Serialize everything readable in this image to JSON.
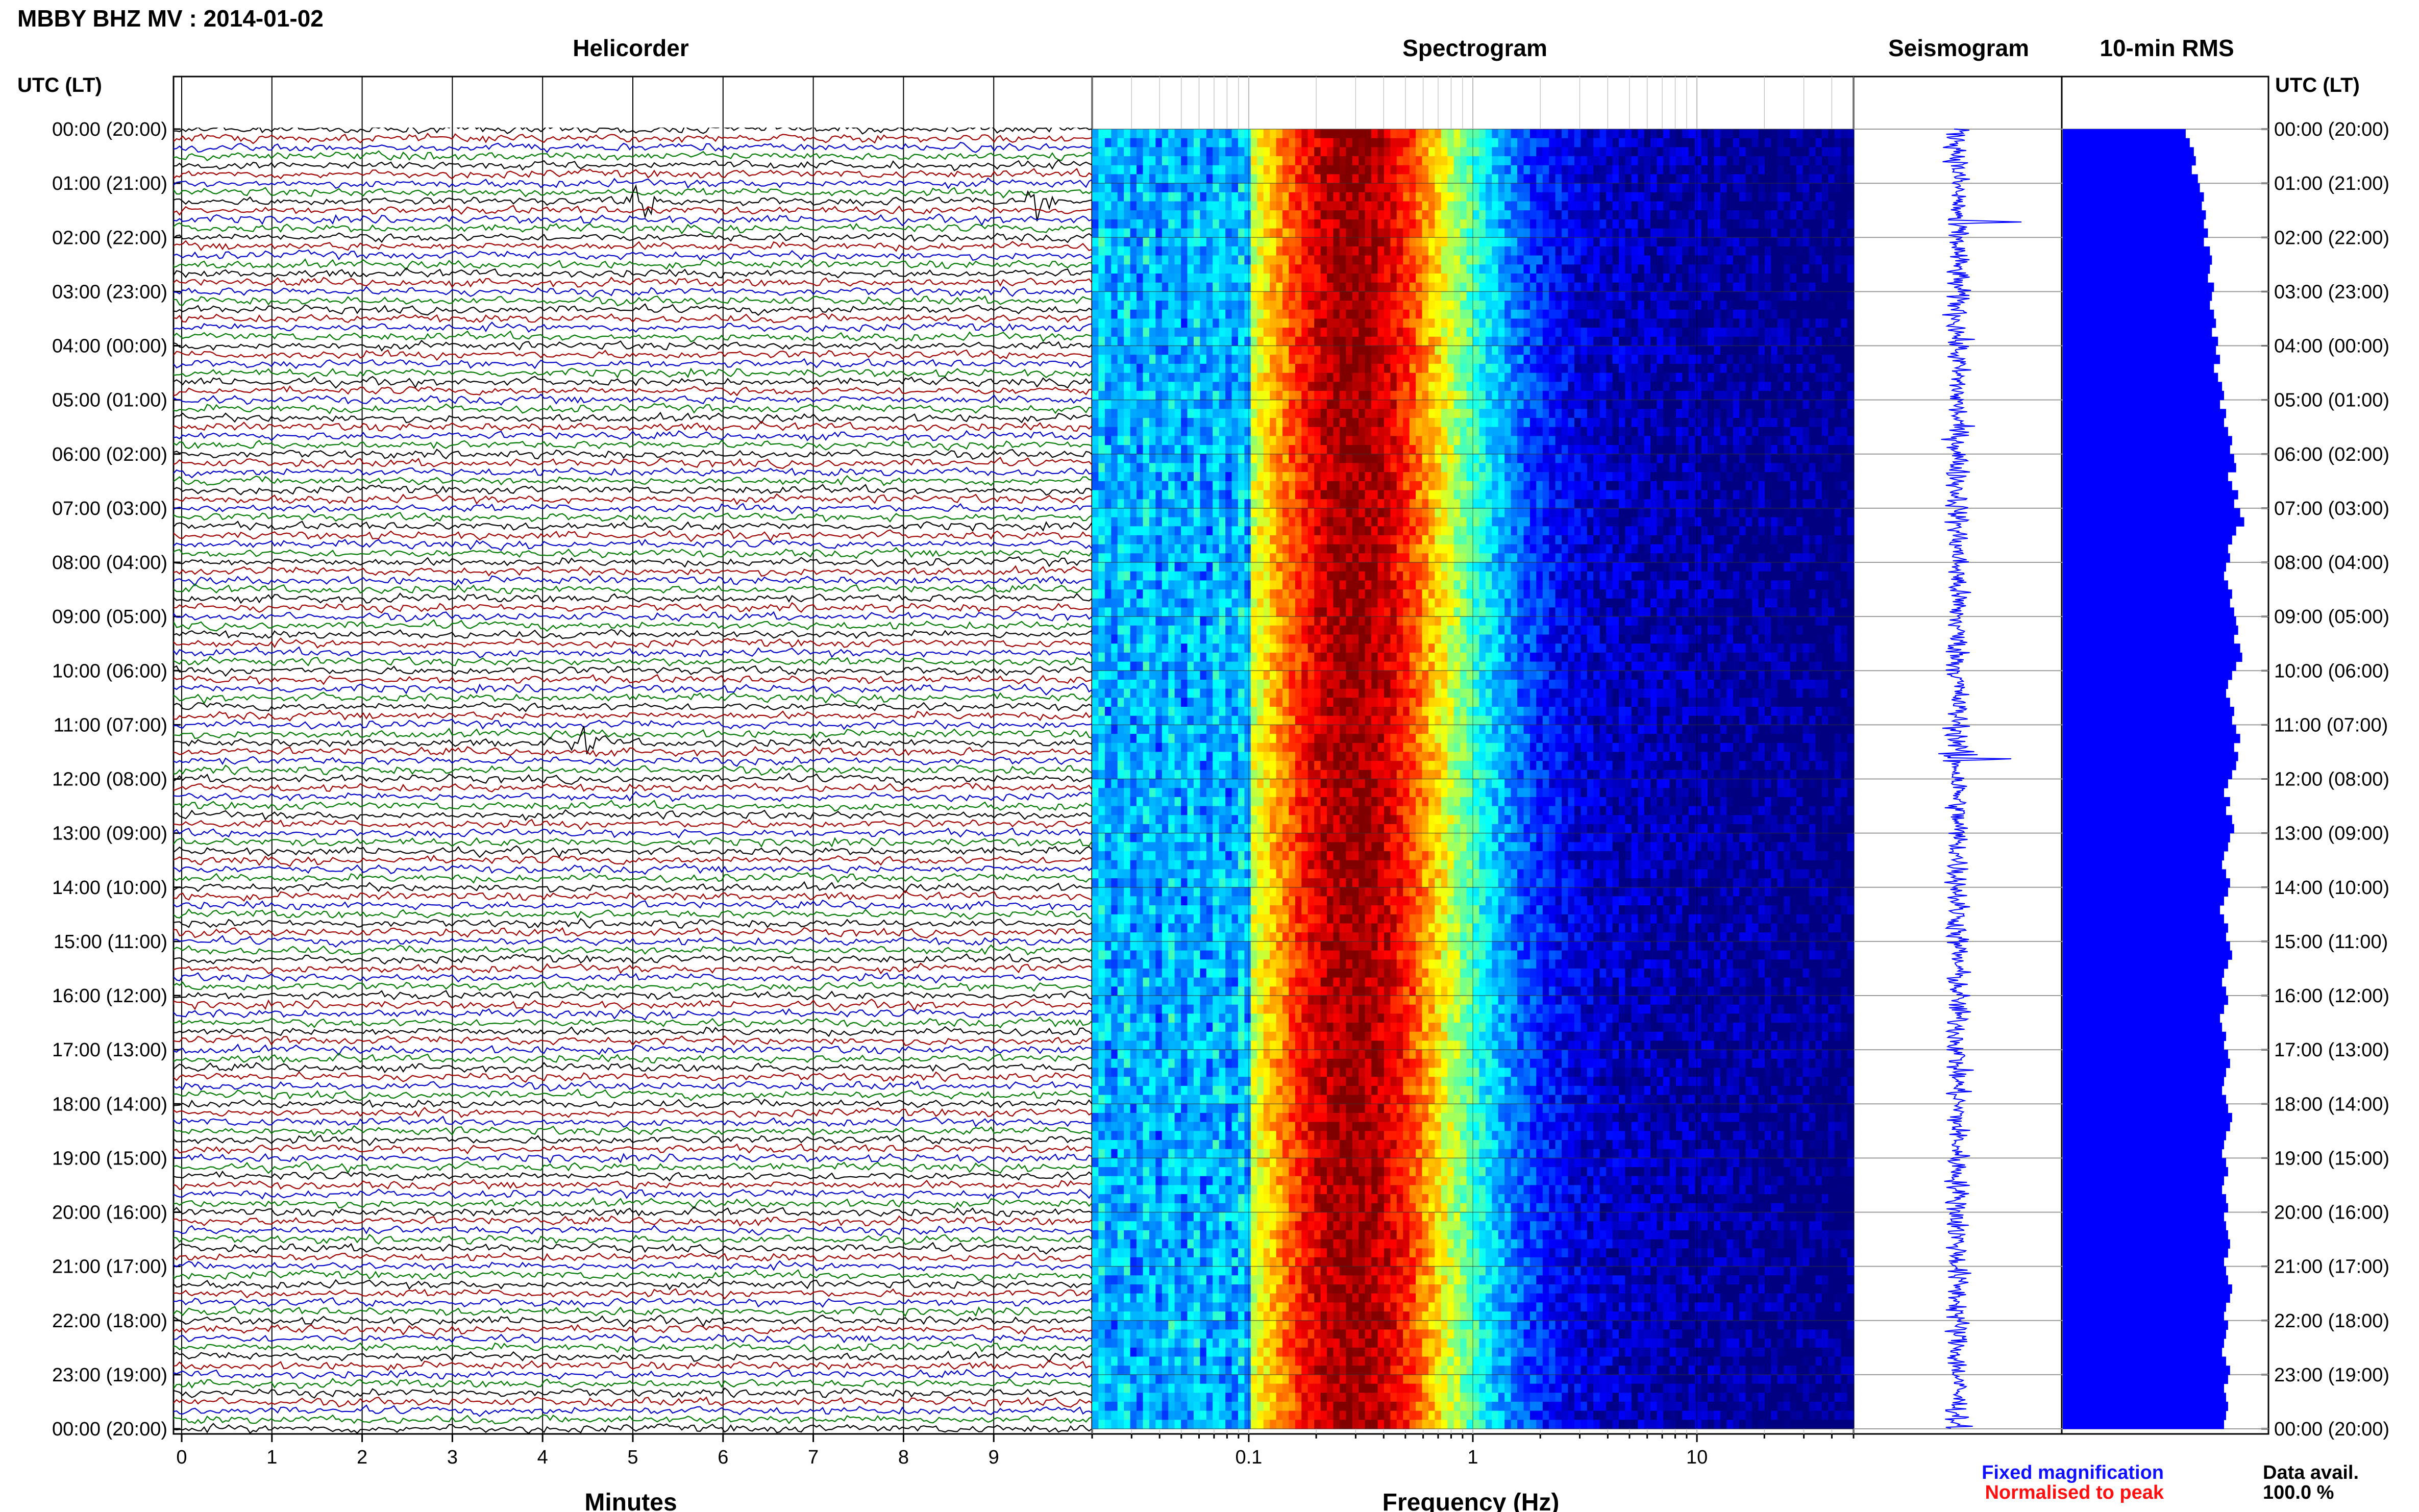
{
  "header": {
    "title": "MBBY BHZ MV : 2014-01-02"
  },
  "panels": {
    "helicorder_title": "Helicorder",
    "spectrogram_title": "Spectrogram",
    "seismogram_title": "Seismogram",
    "rms_title": "10-min RMS"
  },
  "axes": {
    "time_header_left": "UTC (LT)",
    "time_header_right": "UTC (LT)",
    "helicorder_xlabel": "Minutes",
    "spectrogram_xlabel": "Frequency (Hz)"
  },
  "legend": {
    "fixed": "Fixed magnification",
    "normalised": "Normalised to peak",
    "fixed_color": "#1010ff",
    "normalised_color": "#ff1010"
  },
  "availability": {
    "label": "Data avail.",
    "value": "100.0 %"
  },
  "chart_data": {
    "type": "heatmap",
    "station": "MBBY BHZ MV",
    "date": "2014-01-02",
    "time_labels": [
      "00:00 (20:00)",
      "01:00 (21:00)",
      "02:00 (22:00)",
      "03:00 (23:00)",
      "04:00 (00:00)",
      "05:00 (01:00)",
      "06:00 (02:00)",
      "07:00 (03:00)",
      "08:00 (04:00)",
      "09:00 (05:00)",
      "10:00 (06:00)",
      "11:00 (07:00)",
      "12:00 (08:00)",
      "13:00 (09:00)",
      "14:00 (10:00)",
      "15:00 (11:00)",
      "16:00 (12:00)",
      "17:00 (13:00)",
      "18:00 (14:00)",
      "19:00 (15:00)",
      "20:00 (16:00)",
      "21:00 (17:00)",
      "22:00 (18:00)",
      "23:00 (19:00)",
      "00:00 (20:00)"
    ],
    "helicorder": {
      "x_ticks": [
        "0",
        "1",
        "2",
        "3",
        "4",
        "5",
        "6",
        "7",
        "8",
        "9"
      ],
      "xlim": [
        0,
        10
      ],
      "trace_colors": [
        "#000000",
        "#a00000",
        "#0000c8",
        "#007a00"
      ],
      "events": [
        {
          "hour": 1.4,
          "minute": 5.1
        },
        {
          "hour": 1.4,
          "minute": 9.5
        },
        {
          "hour": 11.4,
          "minute": 4.5
        }
      ]
    },
    "spectrogram": {
      "x_scale": "log",
      "xlim": [
        0.02,
        50
      ],
      "x_ticks": [
        {
          "value": 0.1,
          "label": "0.1"
        },
        {
          "value": 1,
          "label": "1"
        },
        {
          "value": 10,
          "label": "10"
        }
      ],
      "peak_frequency_hz": 0.3,
      "colormap": "jet"
    },
    "rms": {
      "interval_minutes": 10,
      "color": "#0000ff",
      "relative_values": [
        0.61,
        0.63,
        0.65,
        0.66,
        0.64,
        0.67,
        0.68,
        0.7,
        0.69,
        0.71,
        0.7,
        0.72,
        0.7,
        0.73,
        0.74,
        0.73,
        0.72,
        0.75,
        0.74,
        0.73,
        0.75,
        0.76,
        0.74,
        0.77,
        0.76,
        0.78,
        0.75,
        0.77,
        0.79,
        0.8,
        0.78,
        0.81,
        0.8,
        0.82,
        0.84,
        0.83,
        0.85,
        0.86,
        0.82,
        0.84,
        0.87,
        0.85,
        0.88,
        0.9,
        0.86,
        0.84,
        0.82,
        0.83,
        0.81,
        0.8,
        0.82,
        0.84,
        0.83,
        0.85,
        0.86,
        0.87,
        0.85,
        0.88,
        0.89,
        0.86,
        0.84,
        0.82,
        0.81,
        0.83,
        0.85,
        0.84,
        0.86,
        0.88,
        0.85,
        0.87,
        0.86,
        0.84,
        0.82,
        0.8,
        0.83,
        0.81,
        0.84,
        0.85,
        0.83,
        0.82,
        0.8,
        0.79,
        0.81,
        0.83,
        0.82,
        0.8,
        0.78,
        0.8,
        0.82,
        0.81,
        0.83,
        0.84,
        0.82,
        0.8,
        0.79,
        0.81,
        0.82,
        0.8,
        0.78,
        0.79,
        0.81,
        0.8,
        0.82,
        0.83,
        0.81,
        0.8,
        0.79,
        0.81,
        0.82,
        0.84,
        0.83,
        0.81,
        0.8,
        0.79,
        0.81,
        0.82,
        0.8,
        0.79,
        0.81,
        0.82,
        0.8,
        0.81,
        0.82,
        0.83,
        0.82,
        0.8,
        0.81,
        0.82,
        0.84,
        0.83,
        0.81,
        0.8,
        0.82,
        0.81,
        0.8,
        0.79,
        0.81,
        0.83,
        0.82,
        0.8,
        0.81,
        0.82,
        0.81,
        0.8
      ]
    },
    "seismogram": {
      "color": "#0000ff",
      "spikes": [
        {
          "hour": 1.7,
          "relative_amplitude": 0.55
        },
        {
          "hour": 11.6,
          "relative_amplitude": 1.0
        }
      ]
    }
  }
}
